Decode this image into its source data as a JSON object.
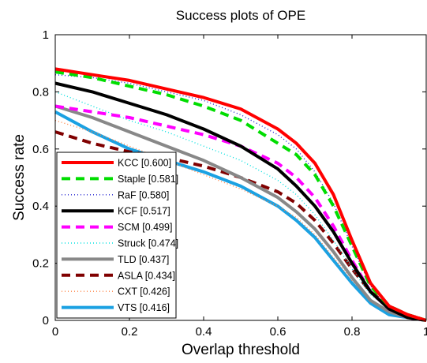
{
  "chart_data": {
    "type": "line",
    "title": "Success plots of OPE",
    "xlabel": "Overlap threshold",
    "ylabel": "Success rate",
    "xlim": [
      0,
      1
    ],
    "ylim": [
      0,
      1
    ],
    "x_ticks": [
      "0",
      "0.2",
      "0.4",
      "0.6",
      "0.8",
      "1"
    ],
    "y_ticks": [
      "0",
      "0.2",
      "0.4",
      "0.6",
      "0.8",
      "1"
    ],
    "grid": false,
    "legend_position": "lower-left",
    "x": [
      0,
      0.1,
      0.2,
      0.3,
      0.4,
      0.5,
      0.6,
      0.65,
      0.7,
      0.75,
      0.8,
      0.85,
      0.9,
      0.95,
      1.0
    ],
    "series": [
      {
        "name": "KCC [0.600]",
        "label": "KCC [0.600]",
        "color": "#ff0000",
        "dash": "solid",
        "values": [
          0.88,
          0.86,
          0.84,
          0.81,
          0.78,
          0.74,
          0.67,
          0.62,
          0.55,
          0.44,
          0.28,
          0.13,
          0.05,
          0.02,
          0.0
        ]
      },
      {
        "name": "Staple [0.581]",
        "label": "Staple [0.581]",
        "color": "#00dd00",
        "dash": "dashed",
        "values": [
          0.87,
          0.85,
          0.82,
          0.79,
          0.75,
          0.7,
          0.62,
          0.58,
          0.51,
          0.4,
          0.26,
          0.12,
          0.05,
          0.02,
          0.0
        ]
      },
      {
        "name": "RaF [0.580]",
        "label": "RaF [0.580]",
        "color": "#2020d0",
        "dash": "dotted",
        "values": [
          0.86,
          0.85,
          0.83,
          0.8,
          0.77,
          0.72,
          0.65,
          0.6,
          0.52,
          0.41,
          0.26,
          0.12,
          0.05,
          0.02,
          0.0
        ]
      },
      {
        "name": "KCF [0.517]",
        "label": "KCF [0.517]",
        "color": "#000000",
        "dash": "solid",
        "values": [
          0.83,
          0.8,
          0.76,
          0.72,
          0.67,
          0.61,
          0.53,
          0.47,
          0.4,
          0.31,
          0.2,
          0.1,
          0.04,
          0.01,
          0.0
        ]
      },
      {
        "name": "SCM [0.499]",
        "label": "SCM [0.499]",
        "color": "#ff00ff",
        "dash": "dashed",
        "values": [
          0.75,
          0.73,
          0.71,
          0.68,
          0.65,
          0.61,
          0.55,
          0.5,
          0.43,
          0.33,
          0.21,
          0.1,
          0.04,
          0.01,
          0.0
        ]
      },
      {
        "name": "Struck [0.474]",
        "label": "Struck [0.474]",
        "color": "#00e0e0",
        "dash": "dotted",
        "values": [
          0.8,
          0.75,
          0.7,
          0.66,
          0.61,
          0.56,
          0.49,
          0.44,
          0.37,
          0.28,
          0.18,
          0.09,
          0.04,
          0.01,
          0.0
        ]
      },
      {
        "name": "TLD [0.437]",
        "label": "TLD [0.437]",
        "color": "#888888",
        "dash": "solid",
        "values": [
          0.75,
          0.71,
          0.66,
          0.61,
          0.56,
          0.5,
          0.43,
          0.38,
          0.32,
          0.24,
          0.15,
          0.07,
          0.03,
          0.01,
          0.0
        ]
      },
      {
        "name": "ASLA [0.434]",
        "label": "ASLA [0.434]",
        "color": "#800000",
        "dash": "dashed",
        "values": [
          0.66,
          0.62,
          0.59,
          0.57,
          0.54,
          0.5,
          0.45,
          0.41,
          0.35,
          0.27,
          0.18,
          0.1,
          0.05,
          0.02,
          0.0
        ]
      },
      {
        "name": "CXT [0.426]",
        "label": "CXT [0.426]",
        "color": "#ff8040",
        "dash": "dotted",
        "values": [
          0.7,
          0.66,
          0.61,
          0.56,
          0.51,
          0.46,
          0.4,
          0.36,
          0.3,
          0.22,
          0.14,
          0.07,
          0.03,
          0.01,
          0.0
        ]
      },
      {
        "name": "VTS [0.416]",
        "label": "VTS [0.416]",
        "color": "#1ba1e2",
        "dash": "solid",
        "values": [
          0.73,
          0.66,
          0.6,
          0.56,
          0.52,
          0.47,
          0.4,
          0.35,
          0.29,
          0.21,
          0.13,
          0.06,
          0.02,
          0.01,
          0.0
        ]
      }
    ]
  }
}
